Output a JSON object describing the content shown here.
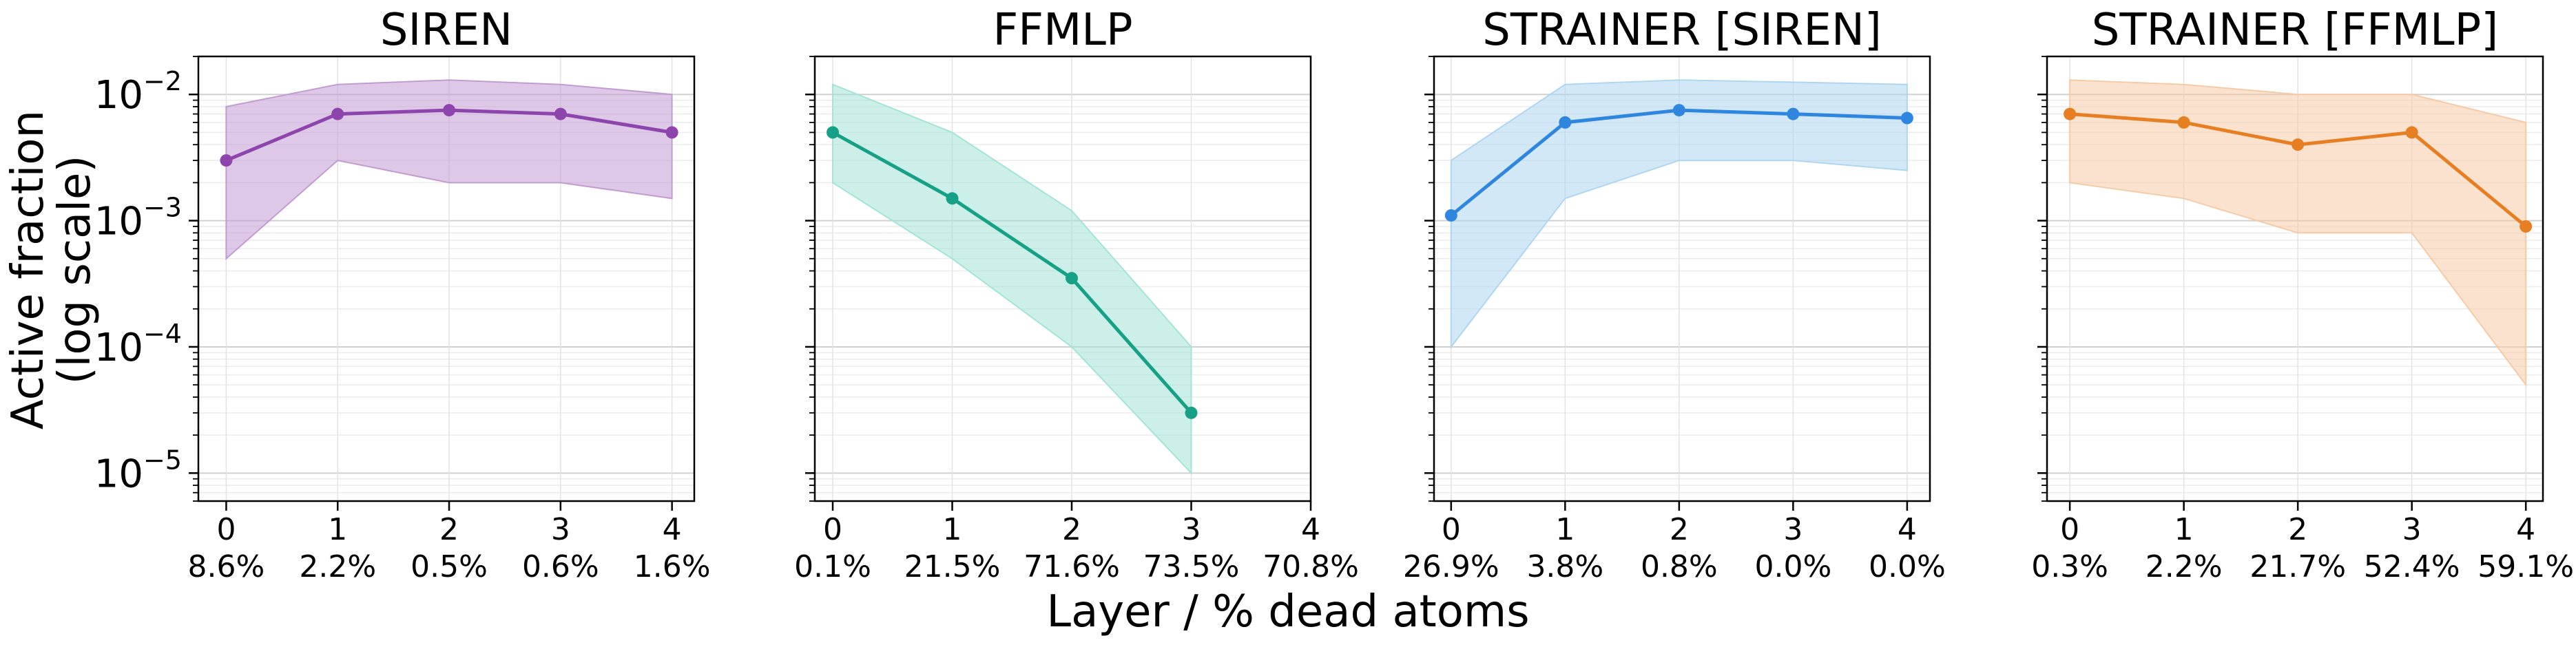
{
  "chart_data": {
    "type": "line",
    "ylabel": [
      "Active fraction",
      "(log scale)"
    ],
    "xlabel": "Layer / % dead atoms",
    "yscale": "log",
    "ylim": [
      6e-06,
      0.02
    ],
    "yticks": [
      {
        "base": "10",
        "exp": "−5"
      },
      {
        "base": "10",
        "exp": "−4"
      },
      {
        "base": "10",
        "exp": "−3"
      },
      {
        "base": "10",
        "exp": "−2"
      }
    ],
    "grid": true,
    "panels": [
      {
        "title": "SIREN",
        "color": "#8e44ad",
        "band_color": "#c39bd3",
        "x": [
          0,
          1,
          2,
          3,
          4
        ],
        "xlim": [
          -0.25,
          4.2
        ],
        "tick_labels": [
          "0",
          "1",
          "2",
          "3",
          "4"
        ],
        "dead_pct": [
          "8.6%",
          "2.2%",
          "0.5%",
          "0.6%",
          "1.6%"
        ],
        "y": [
          0.003,
          0.007,
          0.0075,
          0.007,
          0.005
        ],
        "lower": [
          0.0005,
          0.003,
          0.002,
          0.002,
          0.0015
        ],
        "upper": [
          0.008,
          0.012,
          0.013,
          0.012,
          0.01
        ]
      },
      {
        "title": "FFMLP",
        "color": "#16a085",
        "band_color": "#a3e4d7",
        "x": [
          0,
          1,
          2,
          3
        ],
        "xlim": [
          -0.15,
          4.0
        ],
        "tick_labels": [
          "0",
          "1",
          "2",
          "3",
          "4"
        ],
        "dead_pct": [
          "0.1%",
          "21.5%",
          "71.6%",
          "73.5%",
          "70.8%"
        ],
        "y": [
          0.005,
          0.0015,
          0.00035,
          3e-05
        ],
        "lower": [
          0.002,
          0.0005,
          0.0001,
          1e-05
        ],
        "upper": [
          0.012,
          0.005,
          0.0012,
          0.0001
        ]
      },
      {
        "title": "STRAINER [SIREN]",
        "color": "#2e86de",
        "band_color": "#aed6f1",
        "x": [
          0,
          1,
          2,
          3,
          4
        ],
        "xlim": [
          -0.15,
          4.2
        ],
        "tick_labels": [
          "0",
          "1",
          "2",
          "3",
          "4"
        ],
        "dead_pct": [
          "26.9%",
          "3.8%",
          "0.8%",
          "0.0%",
          "0.0%"
        ],
        "y": [
          0.0011,
          0.006,
          0.0075,
          0.007,
          0.0065
        ],
        "lower": [
          0.0001,
          0.0015,
          0.003,
          0.003,
          0.0025
        ],
        "upper": [
          0.003,
          0.012,
          0.013,
          0.0125,
          0.012
        ]
      },
      {
        "title": "STRAINER [FFMLP]",
        "color": "#e67e22",
        "band_color": "#f5cba7",
        "x": [
          0,
          1,
          2,
          3,
          4
        ],
        "xlim": [
          -0.2,
          4.15
        ],
        "tick_labels": [
          "0",
          "1",
          "2",
          "3",
          "4"
        ],
        "dead_pct": [
          "0.3%",
          "2.2%",
          "21.7%",
          "52.4%",
          "59.1%"
        ],
        "y": [
          0.007,
          0.006,
          0.004,
          0.005,
          0.0009
        ],
        "lower": [
          0.002,
          0.0015,
          0.0008,
          0.0008,
          5e-05
        ],
        "upper": [
          0.013,
          0.012,
          0.01,
          0.01,
          0.006
        ]
      }
    ]
  }
}
